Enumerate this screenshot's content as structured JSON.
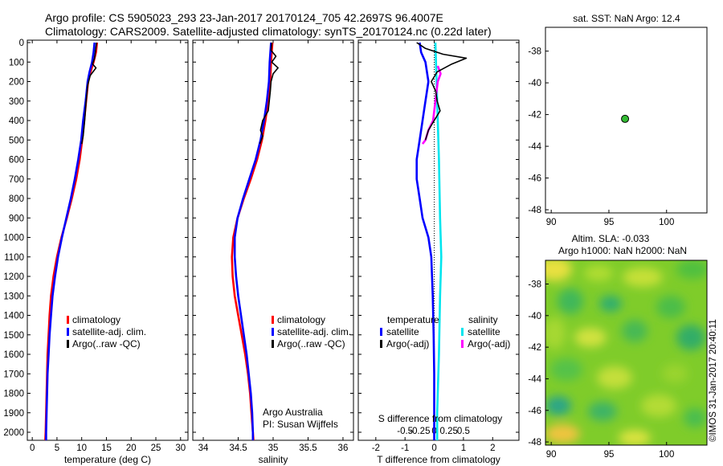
{
  "header": {
    "line1": "Argo profile: CS 5905023_293 23-Jan-2017 20170124_705 42.2697S 96.4007E",
    "line2": "Climatology: CARS2009. Satellite-adjusted climatology: synTS_20170124.nc (0.22d later)"
  },
  "colors": {
    "climatology": "#ff0000",
    "satellite": "#0000ff",
    "argo": "#000000",
    "sal_satellite": "#00e5ee",
    "sal_argo": "#ff00ff",
    "map_marker": "#33bb33"
  },
  "depth_ticks": [
    "0",
    "100",
    "200",
    "300",
    "400",
    "500",
    "600",
    "700",
    "800",
    "900",
    "1000",
    "1100",
    "1200",
    "1300",
    "1400",
    "1500",
    "1600",
    "1700",
    "1800",
    "1900",
    "2000"
  ],
  "temp_panel": {
    "xlabel": "temperature (deg C)",
    "xticks": [
      "0",
      "5",
      "10",
      "15",
      "20",
      "25",
      "30"
    ],
    "legend": [
      "climatology",
      "satellite-adj. clim.",
      "Argo(..raw -QC)"
    ]
  },
  "sal_panel": {
    "xlabel": "salinity",
    "xticks": [
      "34",
      "34.5",
      "35",
      "35.5",
      "36"
    ],
    "legend": [
      "climatology",
      "satellite-adj. clim.",
      "Argo(..raw -QC)"
    ],
    "credit1": "Argo Australia",
    "credit2": "PI: Susan Wijffels"
  },
  "diff_panel": {
    "xlabel": "T difference from climatology",
    "xticks": [
      "-2",
      "-1",
      "0",
      "1",
      "2"
    ],
    "s_label": "S difference from climatology",
    "s_ticks": [
      "-0.5",
      "-0.25",
      "0",
      "0.25",
      "0.5"
    ],
    "legend_t_title": "temperature",
    "legend_s_title": "salinity",
    "legend_t": [
      "satellite",
      "Argo(-adj)"
    ],
    "legend_s": [
      "satellite",
      "Argo(-adj)"
    ]
  },
  "map_top": {
    "title": "sat. SST: NaN Argo: 12.4",
    "yticks": [
      "-38",
      "-40",
      "-42",
      "-44",
      "-46",
      "-48"
    ],
    "xticks": [
      "90",
      "95",
      "100"
    ]
  },
  "map_bottom": {
    "title1": "Altim. SLA: -0.033",
    "title2": "Argo h1000: NaN h2000: NaN",
    "yticks": [
      "-38",
      "-40",
      "-42",
      "-44",
      "-46",
      "-48"
    ],
    "xticks": [
      "90",
      "95",
      "100"
    ],
    "stamp": "©IMOS 31-Jan-2017 20:40:11"
  },
  "chart_data": {
    "type": "line",
    "ylabel_units": "depth",
    "ylim": [
      2050,
      0
    ],
    "panels": [
      {
        "name": "temperature",
        "xlim": [
          -1,
          31.5
        ],
        "series": [
          {
            "name": "climatology",
            "color": "red",
            "points": [
              [
                13.1,
                0
              ],
              [
                12.9,
                50
              ],
              [
                12.4,
                100
              ],
              [
                11.8,
                150
              ],
              [
                11.3,
                200
              ],
              [
                10.9,
                300
              ],
              [
                10.5,
                400
              ],
              [
                10.1,
                500
              ],
              [
                9.6,
                600
              ],
              [
                8.9,
                700
              ],
              [
                8.0,
                800
              ],
              [
                7.0,
                900
              ],
              [
                5.9,
                1000
              ],
              [
                5.0,
                1100
              ],
              [
                4.3,
                1200
              ],
              [
                3.8,
                1300
              ],
              [
                3.5,
                1400
              ],
              [
                3.3,
                1500
              ],
              [
                3.1,
                1600
              ],
              [
                3.0,
                1700
              ],
              [
                2.9,
                1800
              ],
              [
                2.8,
                1900
              ],
              [
                2.7,
                2000
              ],
              [
                2.6,
                2050
              ]
            ]
          },
          {
            "name": "satellite-adj. clim.",
            "color": "blue",
            "points": [
              [
                12.6,
                0
              ],
              [
                12.4,
                50
              ],
              [
                12.1,
                100
              ],
              [
                11.6,
                150
              ],
              [
                11.2,
                200
              ],
              [
                10.8,
                300
              ],
              [
                10.3,
                400
              ],
              [
                9.9,
                500
              ],
              [
                9.3,
                600
              ],
              [
                8.6,
                700
              ],
              [
                7.8,
                800
              ],
              [
                6.9,
                900
              ],
              [
                6.0,
                1000
              ],
              [
                5.2,
                1100
              ],
              [
                4.6,
                1200
              ],
              [
                4.1,
                1300
              ],
              [
                3.8,
                1400
              ],
              [
                3.5,
                1500
              ],
              [
                3.3,
                1600
              ],
              [
                3.1,
                1700
              ],
              [
                3.0,
                1800
              ],
              [
                2.9,
                1900
              ],
              [
                2.8,
                2000
              ],
              [
                2.8,
                2050
              ]
            ]
          },
          {
            "name": "Argo(..raw -QC)",
            "color": "black",
            "points": [
              [
                13.0,
                0
              ],
              [
                12.8,
                40
              ],
              [
                12.6,
                80
              ],
              [
                12.2,
                110
              ],
              [
                12.9,
                130
              ],
              [
                12.3,
                150
              ],
              [
                11.7,
                170
              ],
              [
                11.2,
                220
              ],
              [
                10.9,
                300
              ],
              [
                10.6,
                400
              ],
              [
                10.3,
                480
              ],
              [
                10.0,
                520
              ]
            ]
          }
        ]
      },
      {
        "name": "salinity",
        "xlim": [
          33.85,
          36.15
        ],
        "series": [
          {
            "name": "climatology",
            "color": "red",
            "points": [
              [
                34.99,
                0
              ],
              [
                34.97,
                100
              ],
              [
                34.96,
                200
              ],
              [
                34.93,
                300
              ],
              [
                34.89,
                400
              ],
              [
                34.84,
                500
              ],
              [
                34.77,
                600
              ],
              [
                34.68,
                700
              ],
              [
                34.58,
                800
              ],
              [
                34.49,
                900
              ],
              [
                34.43,
                1000
              ],
              [
                34.41,
                1100
              ],
              [
                34.42,
                1200
              ],
              [
                34.45,
                1300
              ],
              [
                34.5,
                1400
              ],
              [
                34.55,
                1500
              ],
              [
                34.6,
                1600
              ],
              [
                34.64,
                1700
              ],
              [
                34.67,
                1800
              ],
              [
                34.69,
                1900
              ],
              [
                34.71,
                2000
              ],
              [
                34.72,
                2050
              ]
            ]
          },
          {
            "name": "satellite-adj. clim.",
            "color": "blue",
            "points": [
              [
                34.97,
                0
              ],
              [
                34.95,
                100
              ],
              [
                34.94,
                200
              ],
              [
                34.91,
                300
              ],
              [
                34.87,
                400
              ],
              [
                34.82,
                500
              ],
              [
                34.75,
                600
              ],
              [
                34.66,
                700
              ],
              [
                34.57,
                800
              ],
              [
                34.49,
                900
              ],
              [
                34.45,
                1000
              ],
              [
                34.45,
                1100
              ],
              [
                34.47,
                1200
              ],
              [
                34.5,
                1300
              ],
              [
                34.54,
                1400
              ],
              [
                34.58,
                1500
              ],
              [
                34.62,
                1600
              ],
              [
                34.65,
                1700
              ],
              [
                34.68,
                1800
              ],
              [
                34.7,
                1900
              ],
              [
                34.71,
                2000
              ],
              [
                34.71,
                2050
              ]
            ]
          },
          {
            "name": "Argo(..raw -QC)",
            "color": "black",
            "points": [
              [
                34.98,
                0
              ],
              [
                34.97,
                40
              ],
              [
                35.04,
                70
              ],
              [
                34.98,
                100
              ],
              [
                35.07,
                130
              ],
              [
                35.0,
                160
              ],
              [
                34.97,
                200
              ],
              [
                34.96,
                250
              ],
              [
                34.93,
                350
              ],
              [
                34.85,
                400
              ],
              [
                34.82,
                450
              ],
              [
                34.85,
                480
              ],
              [
                34.81,
                520
              ]
            ]
          }
        ]
      },
      {
        "name": "difference",
        "xlim": [
          -2.6,
          2.9
        ],
        "series": [
          {
            "name": "temperature satellite",
            "color": "blue",
            "points": [
              [
                -0.5,
                0
              ],
              [
                -0.45,
                50
              ],
              [
                -0.3,
                100
              ],
              [
                -0.2,
                200
              ],
              [
                -0.3,
                300
              ],
              [
                -0.4,
                400
              ],
              [
                -0.5,
                500
              ],
              [
                -0.6,
                600
              ],
              [
                -0.6,
                700
              ],
              [
                -0.5,
                800
              ],
              [
                -0.4,
                900
              ],
              [
                -0.2,
                1000
              ],
              [
                -0.1,
                1100
              ],
              [
                -0.05,
                1300
              ],
              [
                -0.02,
                1500
              ],
              [
                0,
                1700
              ],
              [
                0,
                2000
              ],
              [
                0,
                2050
              ]
            ]
          },
          {
            "name": "temperature Argo(-adj)",
            "color": "black",
            "points": [
              [
                -0.6,
                0
              ],
              [
                -0.3,
                30
              ],
              [
                0.3,
                60
              ],
              [
                1.1,
                80
              ],
              [
                0.6,
                110
              ],
              [
                0.1,
                150
              ],
              [
                -0.1,
                200
              ],
              [
                0.05,
                250
              ],
              [
                0.1,
                300
              ],
              [
                0.2,
                350
              ],
              [
                0,
                400
              ],
              [
                -0.2,
                450
              ],
              [
                -0.3,
                500
              ]
            ]
          },
          {
            "name": "salinity satellite",
            "color": "cyan",
            "points": [
              [
                0.02,
                0
              ],
              [
                0.03,
                100
              ],
              [
                0.05,
                300
              ],
              [
                0.08,
                600
              ],
              [
                0.1,
                900
              ],
              [
                0.12,
                1100
              ],
              [
                0.1,
                1300
              ],
              [
                0.08,
                1600
              ],
              [
                0.05,
                1900
              ],
              [
                0.05,
                2050
              ]
            ]
          },
          {
            "name": "salinity Argo(-adj)",
            "color": "magenta",
            "points": [
              [
                0.06,
                120
              ],
              [
                0.11,
                160
              ],
              [
                0.06,
                200
              ],
              [
                0.02,
                300
              ],
              [
                -0.02,
                400
              ],
              [
                -0.1,
                450
              ],
              [
                -0.15,
                500
              ],
              [
                -0.2,
                520
              ]
            ]
          }
        ]
      }
    ],
    "map_point": {
      "lon": 96.4007,
      "lat": -42.2697,
      "xlim": [
        89.5,
        103.5
      ],
      "ylim": [
        -48.2,
        -36.5
      ]
    }
  }
}
